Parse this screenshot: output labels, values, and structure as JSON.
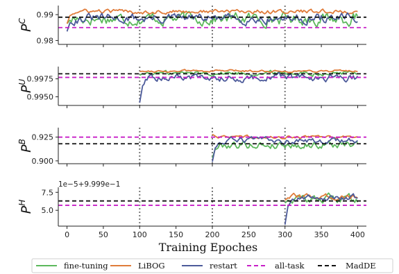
{
  "chart_data": {
    "type": "line",
    "xlabel": "Training Epoches",
    "x_ticks": [
      0,
      50,
      100,
      150,
      200,
      250,
      300,
      350,
      400
    ],
    "xlim": [
      -12,
      412
    ],
    "task_boundaries": [
      100,
      200,
      300
    ],
    "legend": {
      "placement": "bottom",
      "entries": [
        {
          "name": "fine-tuning",
          "color": "#5cb85c",
          "style": "solid"
        },
        {
          "name": "LiBOG",
          "color": "#e07b39",
          "style": "solid"
        },
        {
          "name": "restart",
          "color": "#4c5a9a",
          "style": "solid"
        },
        {
          "name": "all-task",
          "color": "#c71ec7",
          "style": "dashed"
        },
        {
          "name": "MadDE",
          "color": "#111111",
          "style": "dashed"
        }
      ]
    },
    "panels": [
      {
        "ylabel": "P",
        "ylabel_sup": "C",
        "ylim": [
          0.9785,
          0.9935
        ],
        "yticks": [
          0.98,
          0.99
        ],
        "ytick_labels": [
          "0.98",
          "0.99"
        ],
        "offset_text": "",
        "series": {
          "fine-tuning": {
            "x_start": 0,
            "x_end": 400,
            "base": 0.9885,
            "noise": 0.0022,
            "start": 0.9865
          },
          "LiBOG": {
            "x_start": 0,
            "x_end": 400,
            "base": 0.9912,
            "noise": 0.0008,
            "start": 0.9865
          },
          "restart": {
            "x_start": 0,
            "x_end": 400,
            "base": 0.9885,
            "noise": 0.0017,
            "start": 0.9835
          },
          "all-task": {
            "value": 0.985
          },
          "MadDE": {
            "value": 0.989
          }
        }
      },
      {
        "ylabel": "P",
        "ylabel_sup": "U",
        "ylim": [
          0.9938,
          0.9992
        ],
        "yticks": [
          0.995,
          0.9975
        ],
        "ytick_labels": [
          "0.9950",
          "0.9975"
        ],
        "offset_text": "",
        "series": {
          "fine-tuning": {
            "x_start": 100,
            "x_end": 400,
            "base": 0.9983,
            "noise": 0.0003,
            "start": 0.998
          },
          "LiBOG": {
            "x_start": 100,
            "x_end": 400,
            "base": 0.9986,
            "noise": 0.00015,
            "start": 0.9985
          },
          "restart": {
            "x_start": 100,
            "x_end": 400,
            "base": 0.9977,
            "noise": 0.0005,
            "start": 0.9942
          },
          "all-task": {
            "value": 0.9977
          },
          "MadDE": {
            "value": 0.9982
          }
        }
      },
      {
        "ylabel": "P",
        "ylabel_sup": "B",
        "ylim": [
          0.897,
          0.935
        ],
        "yticks": [
          0.9,
          0.925
        ],
        "ytick_labels": [
          "0.900",
          "0.925"
        ],
        "offset_text": "",
        "series": {
          "fine-tuning": {
            "x_start": 200,
            "x_end": 400,
            "base": 0.917,
            "noise": 0.004,
            "start": 0.903
          },
          "LiBOG": {
            "x_start": 200,
            "x_end": 400,
            "base": 0.925,
            "noise": 0.0015,
            "start": 0.928
          },
          "restart": {
            "x_start": 200,
            "x_end": 400,
            "base": 0.921,
            "noise": 0.003,
            "start": 0.899
          },
          "all-task": {
            "value": 0.925
          },
          "MadDE": {
            "value": 0.918
          }
        }
      },
      {
        "ylabel": "P",
        "ylabel_sup": "H",
        "ylim": [
          2.8,
          8.2
        ],
        "yticks": [
          5.0,
          7.5
        ],
        "ytick_labels": [
          "5.0",
          "7.5"
        ],
        "offset_text": "1e−5+9.999e−1",
        "series": {
          "fine-tuning": {
            "x_start": 300,
            "x_end": 400,
            "base": 6.6,
            "noise": 0.55,
            "start": 6.0
          },
          "LiBOG": {
            "x_start": 300,
            "x_end": 400,
            "base": 6.9,
            "noise": 0.35,
            "start": 6.4
          },
          "restart": {
            "x_start": 300,
            "x_end": 400,
            "base": 6.8,
            "noise": 0.4,
            "start": 3.0
          },
          "all-task": {
            "value": 5.7
          },
          "MadDE": {
            "value": 6.3
          }
        }
      }
    ]
  }
}
